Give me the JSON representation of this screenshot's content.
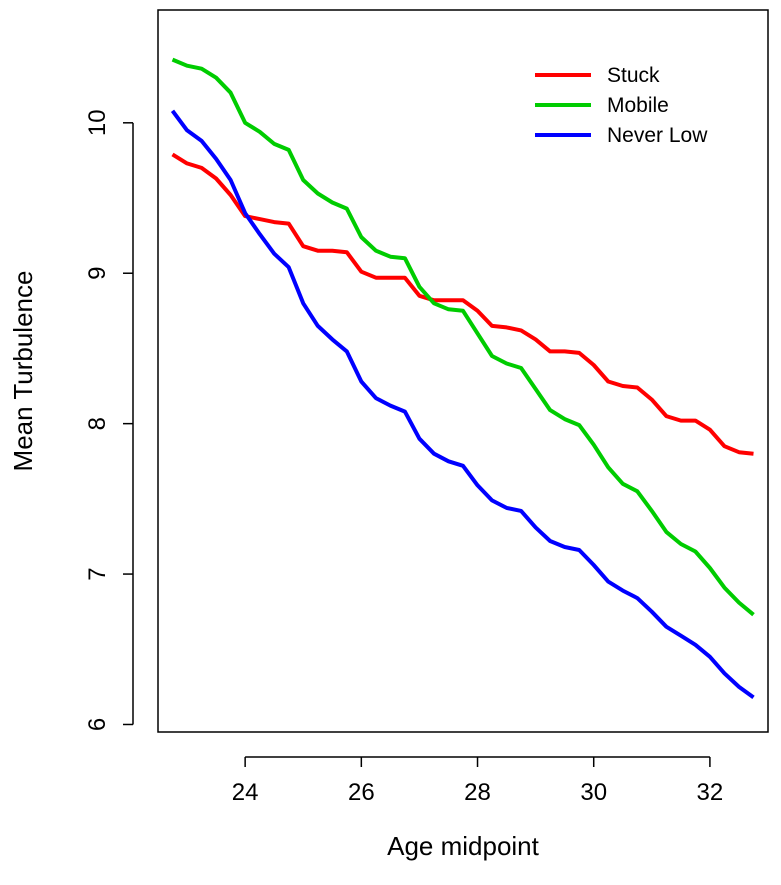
{
  "chart_data": {
    "type": "line",
    "title": "",
    "xlabel": "Age midpoint",
    "ylabel": "Mean Turbulence",
    "xlim": [
      22.5,
      33.0
    ],
    "ylim": [
      5.95,
      10.75
    ],
    "xticks": [
      24,
      26,
      28,
      30,
      32
    ],
    "yticks": [
      6,
      7,
      8,
      9,
      10
    ],
    "grid": false,
    "legend_position": "top-right",
    "x": [
      22.75,
      23.0,
      23.25,
      23.5,
      23.75,
      24.0,
      24.25,
      24.5,
      24.75,
      25.0,
      25.25,
      25.5,
      25.75,
      26.0,
      26.25,
      26.5,
      26.75,
      27.0,
      27.25,
      27.5,
      27.75,
      28.0,
      28.25,
      28.5,
      28.75,
      29.0,
      29.25,
      29.5,
      29.75,
      30.0,
      30.25,
      30.5,
      30.75,
      31.0,
      31.25,
      31.5,
      31.75,
      32.0,
      32.25,
      32.5,
      32.75
    ],
    "series": [
      {
        "name": "Stuck",
        "color": "#ff0000",
        "values": [
          9.79,
          9.73,
          9.7,
          9.63,
          9.52,
          9.38,
          9.36,
          9.34,
          9.33,
          9.18,
          9.15,
          9.15,
          9.14,
          9.01,
          8.97,
          8.97,
          8.97,
          8.85,
          8.82,
          8.82,
          8.82,
          8.75,
          8.65,
          8.64,
          8.62,
          8.56,
          8.48,
          8.48,
          8.47,
          8.39,
          8.28,
          8.25,
          8.24,
          8.16,
          8.05,
          8.02,
          8.02,
          7.96,
          7.85,
          7.81,
          7.8
        ]
      },
      {
        "name": "Mobile",
        "color": "#00cc00",
        "values": [
          10.42,
          10.38,
          10.36,
          10.3,
          10.2,
          10.0,
          9.94,
          9.86,
          9.82,
          9.62,
          9.53,
          9.47,
          9.43,
          9.24,
          9.15,
          9.11,
          9.1,
          8.91,
          8.8,
          8.76,
          8.75,
          8.6,
          8.45,
          8.4,
          8.37,
          8.23,
          8.09,
          8.03,
          7.99,
          7.86,
          7.71,
          7.6,
          7.55,
          7.42,
          7.28,
          7.2,
          7.15,
          7.04,
          6.91,
          6.81,
          6.73
        ]
      },
      {
        "name": "Never Low",
        "color": "#0000ff",
        "values": [
          10.08,
          9.95,
          9.88,
          9.76,
          9.62,
          9.4,
          9.26,
          9.13,
          9.04,
          8.8,
          8.65,
          8.56,
          8.48,
          8.28,
          8.17,
          8.12,
          8.08,
          7.9,
          7.8,
          7.75,
          7.72,
          7.59,
          7.49,
          7.44,
          7.42,
          7.31,
          7.22,
          7.18,
          7.16,
          7.06,
          6.95,
          6.89,
          6.84,
          6.75,
          6.65,
          6.59,
          6.53,
          6.45,
          6.34,
          6.25,
          6.18
        ]
      }
    ]
  }
}
